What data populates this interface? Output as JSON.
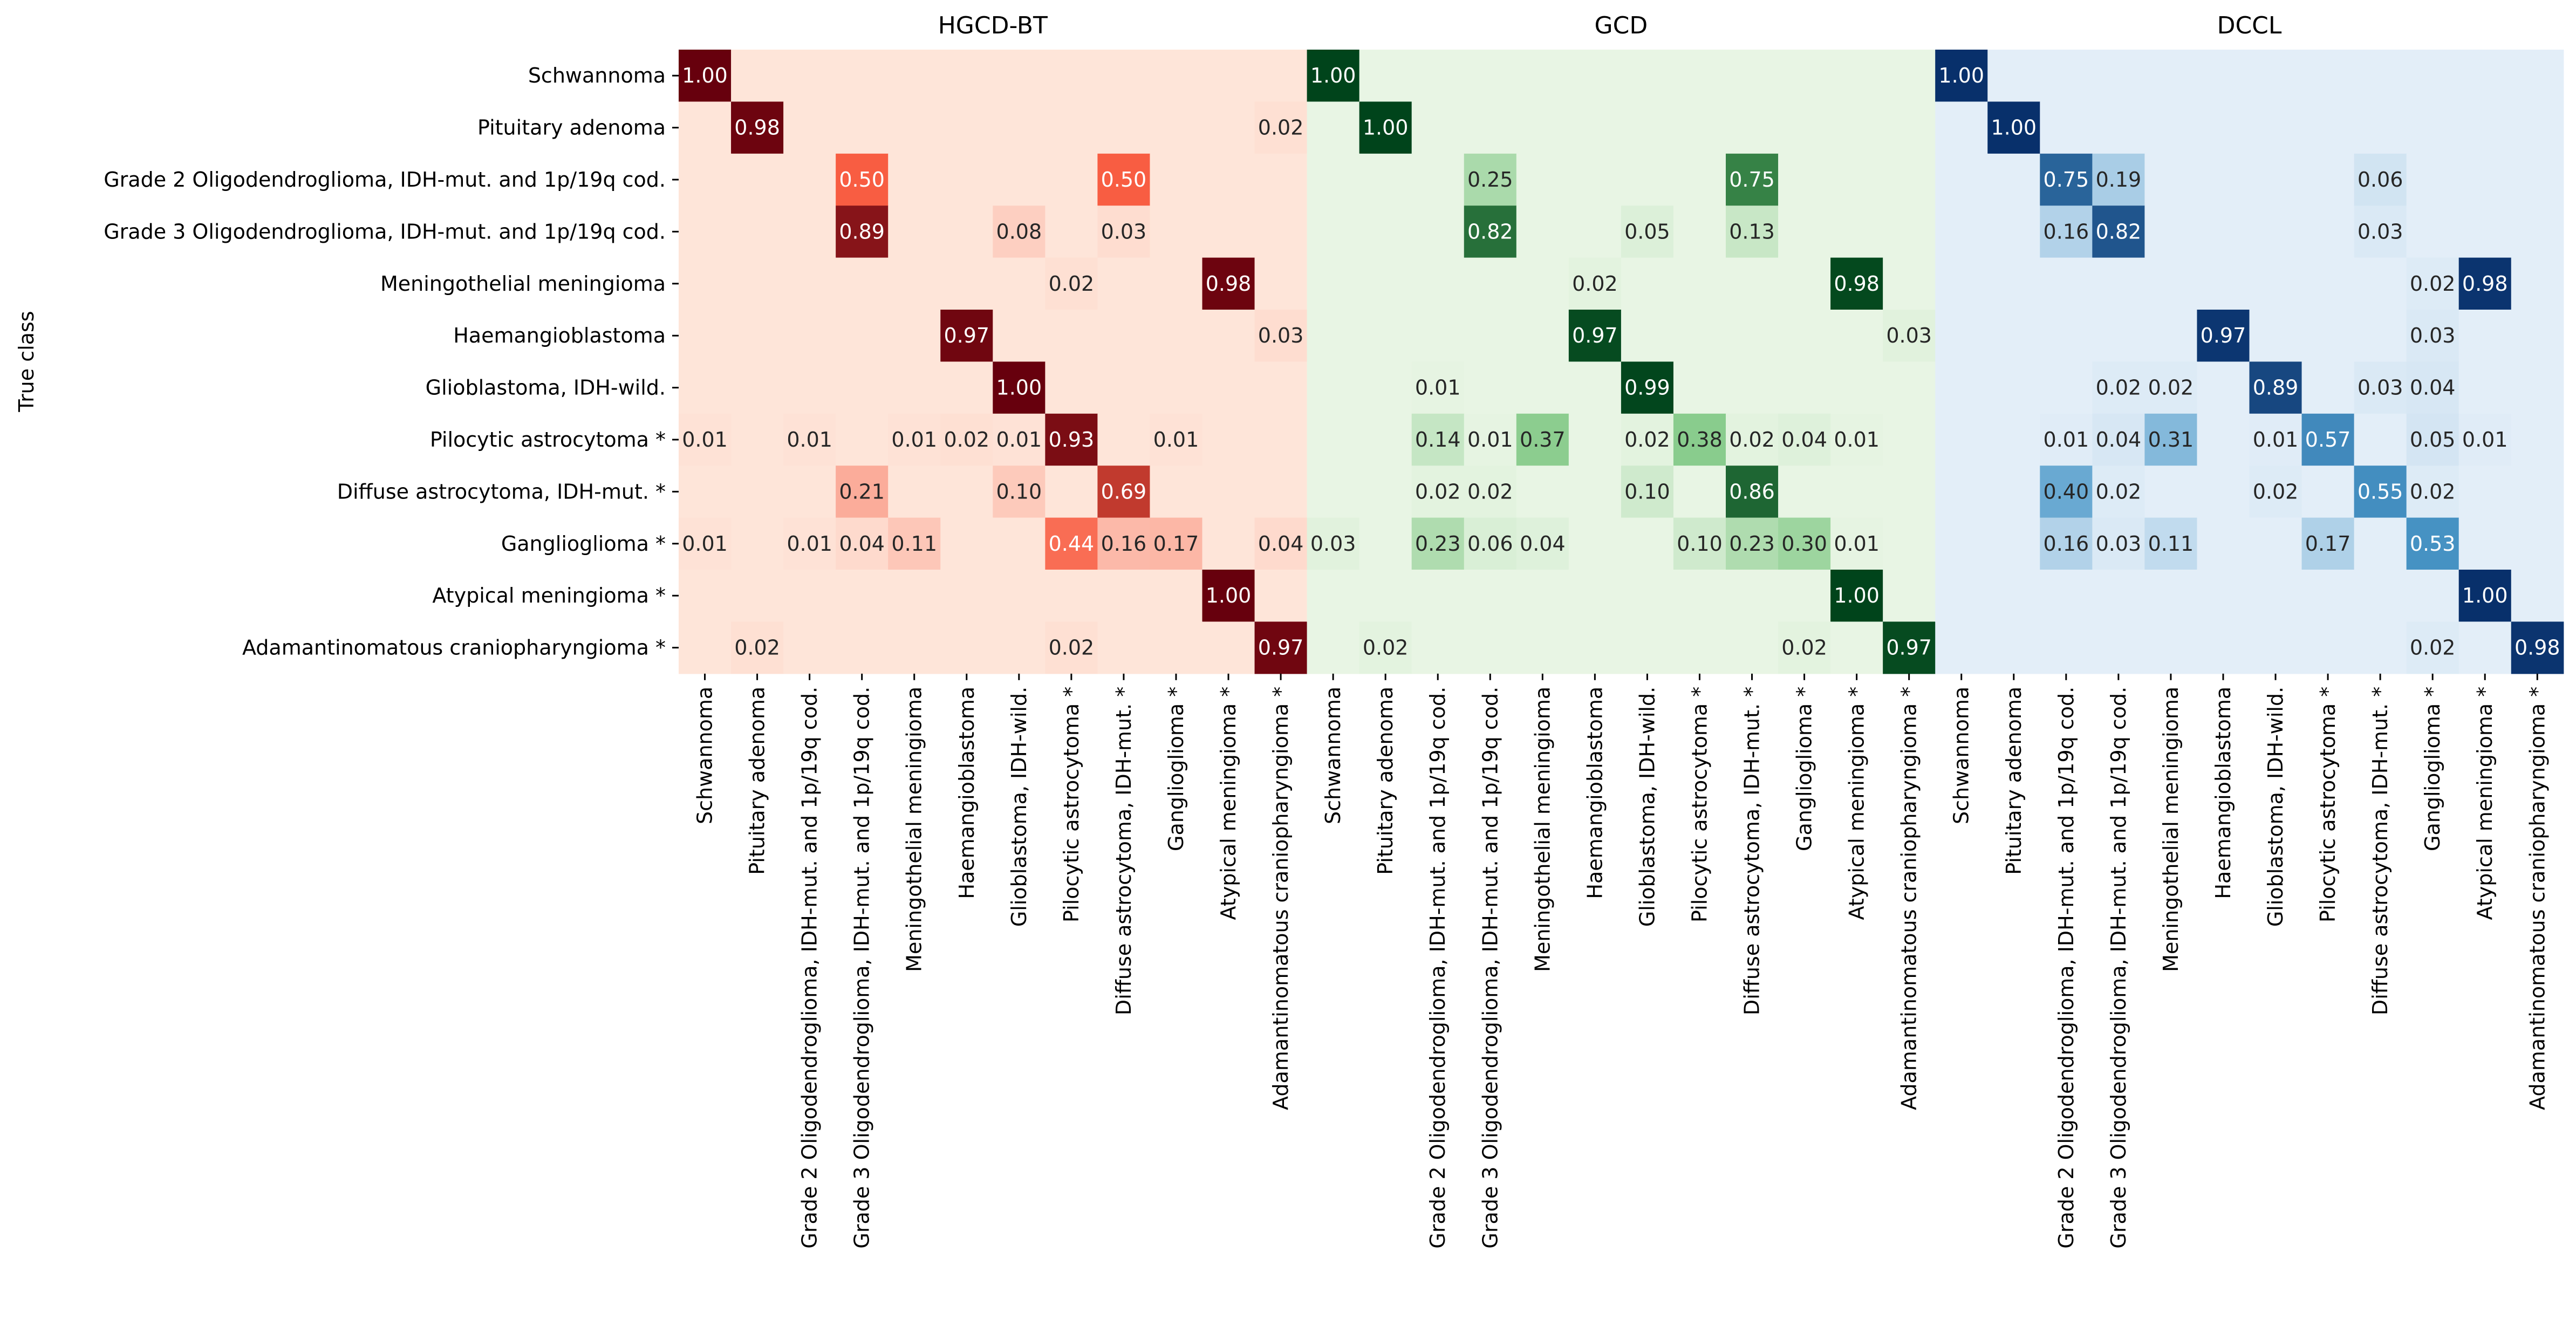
{
  "chart_data": {
    "type": "heatmap",
    "ylabel": "True class",
    "xlabel": "",
    "value_format": "2 decimals, zero cells unlabeled",
    "classes": [
      "Schwannoma",
      "Pituitary adenoma",
      "Grade 2 Oligodendroglioma, IDH-mut. and 1p/19q cod.",
      "Grade 3 Oligodendroglioma, IDH-mut. and 1p/19q cod.",
      "Meningothelial meningioma",
      "Haemangioblastoma",
      "Glioblastoma, IDH-wild.",
      "Pilocytic astrocytoma *",
      "Diffuse astrocytoma, IDH-mut. *",
      "Ganglioglioma *",
      "Atypical meningioma *",
      "Adamantinomatous craniopharyngioma *"
    ],
    "panels": [
      {
        "title": "HGCD-BT",
        "colormap": "Reds",
        "color_low": "#fee5d9",
        "color_mid": "#f85d42",
        "color_high": "#67000d",
        "matrix": [
          [
            1.0,
            0,
            0,
            0,
            0,
            0,
            0,
            0,
            0,
            0,
            0,
            0
          ],
          [
            0,
            0.98,
            0,
            0,
            0,
            0,
            0,
            0,
            0,
            0,
            0,
            0.02
          ],
          [
            0,
            0,
            0,
            0.5,
            0,
            0,
            0,
            0,
            0.5,
            0,
            0,
            0
          ],
          [
            0,
            0,
            0,
            0.89,
            0,
            0,
            0.08,
            0,
            0.03,
            0,
            0,
            0
          ],
          [
            0,
            0,
            0,
            0,
            0,
            0,
            0,
            0.02,
            0,
            0,
            0.98,
            0
          ],
          [
            0,
            0,
            0,
            0,
            0,
            0.97,
            0,
            0,
            0,
            0,
            0,
            0.03
          ],
          [
            0,
            0,
            0,
            0,
            0,
            0,
            1.0,
            0,
            0,
            0,
            0,
            0
          ],
          [
            0.01,
            0,
            0.01,
            0,
            0.01,
            0.02,
            0.01,
            0.93,
            0,
            0.01,
            0,
            0
          ],
          [
            0,
            0,
            0,
            0.21,
            0,
            0,
            0.1,
            0,
            0.69,
            0,
            0,
            0
          ],
          [
            0.01,
            0,
            0.01,
            0.04,
            0.11,
            0,
            0,
            0.44,
            0.16,
            0.17,
            0,
            0.04
          ],
          [
            0,
            0,
            0,
            0,
            0,
            0,
            0,
            0,
            0,
            0,
            1.0,
            0
          ],
          [
            0,
            0.02,
            0,
            0,
            0,
            0,
            0,
            0.02,
            0,
            0,
            0,
            0.97
          ]
        ]
      },
      {
        "title": "GCD",
        "colormap": "Greens",
        "color_low": "#e8f5e4",
        "color_mid": "#6bbf71",
        "color_high": "#00441b",
        "matrix": [
          [
            1.0,
            0,
            0,
            0,
            0,
            0,
            0,
            0,
            0,
            0,
            0,
            0
          ],
          [
            0,
            1.0,
            0,
            0,
            0,
            0,
            0,
            0,
            0,
            0,
            0,
            0
          ],
          [
            0,
            0,
            0,
            0.25,
            0,
            0,
            0,
            0,
            0.75,
            0,
            0,
            0
          ],
          [
            0,
            0,
            0,
            0.82,
            0,
            0,
            0.05,
            0,
            0.13,
            0,
            0,
            0
          ],
          [
            0,
            0,
            0,
            0,
            0,
            0.02,
            0,
            0,
            0,
            0,
            0.98,
            0
          ],
          [
            0,
            0,
            0,
            0,
            0,
            0.97,
            0,
            0,
            0,
            0,
            0,
            0.03
          ],
          [
            0,
            0,
            0.01,
            0,
            0,
            0,
            0.99,
            0,
            0,
            0,
            0,
            0
          ],
          [
            0,
            0,
            0.14,
            0.01,
            0.37,
            0,
            0.02,
            0.38,
            0.02,
            0.04,
            0.01,
            0
          ],
          [
            0,
            0,
            0.02,
            0.02,
            0,
            0,
            0.1,
            0,
            0.86,
            0,
            0,
            0
          ],
          [
            0.03,
            0,
            0.23,
            0.06,
            0.04,
            0,
            0,
            0.1,
            0.23,
            0.3,
            0.01,
            0
          ],
          [
            0,
            0,
            0,
            0,
            0,
            0,
            0,
            0,
            0,
            0,
            1.0,
            0
          ],
          [
            0,
            0.02,
            0,
            0,
            0,
            0,
            0,
            0,
            0,
            0.02,
            0,
            0.97
          ]
        ]
      },
      {
        "title": "DCCL",
        "colormap": "Blues",
        "color_low": "#e3eef8",
        "color_mid": "#4a98c9",
        "color_high": "#08306b",
        "matrix": [
          [
            1.0,
            0,
            0,
            0,
            0,
            0,
            0,
            0,
            0,
            0,
            0,
            0
          ],
          [
            0,
            1.0,
            0,
            0,
            0,
            0,
            0,
            0,
            0,
            0,
            0,
            0
          ],
          [
            0,
            0,
            0.75,
            0.19,
            0,
            0,
            0,
            0,
            0.06,
            0,
            0,
            0
          ],
          [
            0,
            0,
            0.16,
            0.82,
            0,
            0,
            0,
            0,
            0.03,
            0,
            0,
            0
          ],
          [
            0,
            0,
            0,
            0,
            0,
            0,
            0,
            0,
            0,
            0.02,
            0.98,
            0
          ],
          [
            0,
            0,
            0,
            0,
            0,
            0.97,
            0,
            0,
            0,
            0.03,
            0,
            0
          ],
          [
            0,
            0,
            0,
            0.02,
            0.02,
            0,
            0.89,
            0,
            0.03,
            0.04,
            0,
            0
          ],
          [
            0,
            0,
            0.01,
            0.04,
            0.31,
            0,
            0.01,
            0.57,
            0,
            0.05,
            0.01,
            0
          ],
          [
            0,
            0,
            0.4,
            0.02,
            0,
            0,
            0.02,
            0,
            0.55,
            0.02,
            0,
            0
          ],
          [
            0,
            0,
            0.16,
            0.03,
            0.11,
            0,
            0,
            0.17,
            0,
            0.53,
            0,
            0
          ],
          [
            0,
            0,
            0,
            0,
            0,
            0,
            0,
            0,
            0,
            0,
            1.0,
            0
          ],
          [
            0,
            0,
            0,
            0,
            0,
            0,
            0,
            0,
            0,
            0.02,
            0,
            0.98
          ]
        ]
      }
    ]
  }
}
